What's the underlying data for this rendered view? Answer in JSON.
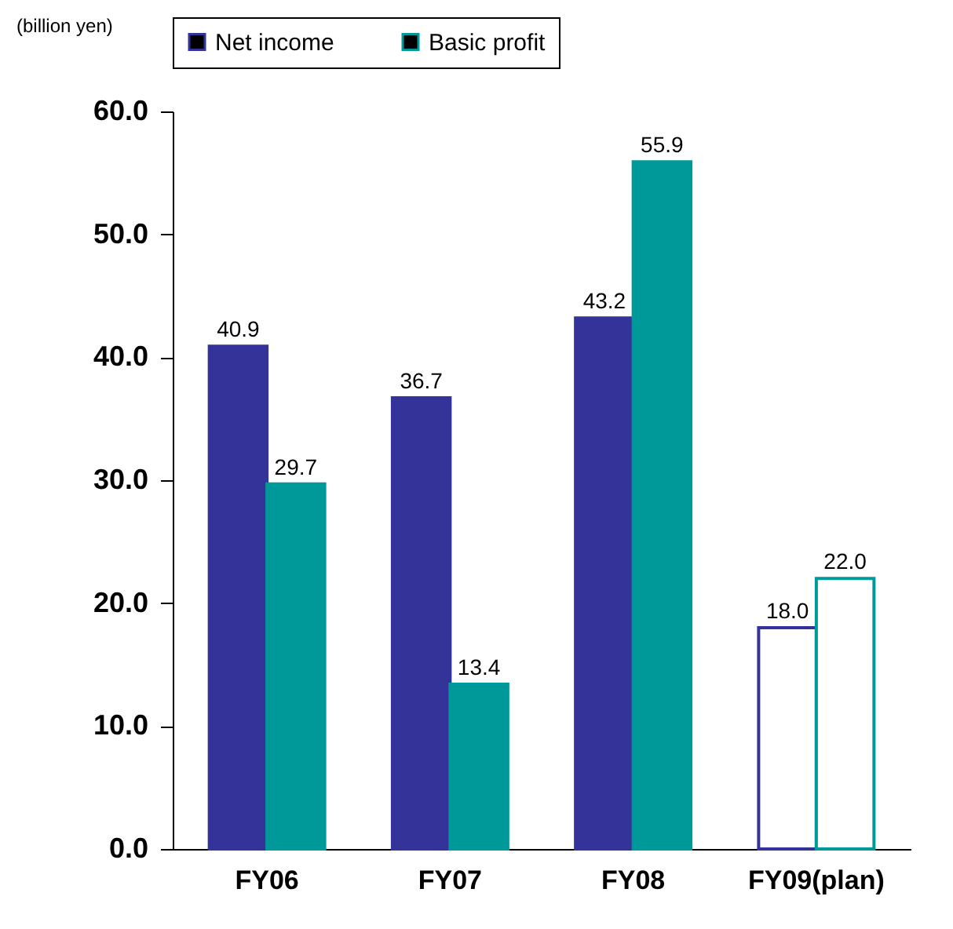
{
  "chart_data": {
    "type": "bar",
    "ylabel": "(billion yen)",
    "categories": [
      "FY06",
      "FY07",
      "FY08",
      "FY09(plan)"
    ],
    "series": [
      {
        "name": "Net income",
        "color": "#333399",
        "colors": [
          "#333399",
          "#333399",
          "#333399",
          "#ffffff"
        ],
        "values": [
          40.9,
          36.7,
          43.2,
          18.0
        ],
        "value_labels": [
          "40.9",
          "36.7",
          "43.2",
          "18.0"
        ]
      },
      {
        "name": "Basic profit",
        "color": "#009999",
        "colors": [
          "#009999",
          "#009999",
          "#009999",
          "#ffffff"
        ],
        "values": [
          29.7,
          13.4,
          55.9,
          22.0
        ],
        "value_labels": [
          "29.7",
          "13.4",
          "55.9",
          "22.0"
        ]
      }
    ],
    "ylim": [
      0,
      60
    ],
    "yticks": [
      {
        "value": 0,
        "label": "0.0"
      },
      {
        "value": 10,
        "label": "10.0"
      },
      {
        "value": 20,
        "label": "20.0"
      },
      {
        "value": 30,
        "label": "30.0"
      },
      {
        "value": 40,
        "label": "40.0"
      },
      {
        "value": 50,
        "label": "50.0"
      },
      {
        "value": 60,
        "label": "60.0"
      }
    ],
    "grid": false,
    "legend": "top"
  }
}
